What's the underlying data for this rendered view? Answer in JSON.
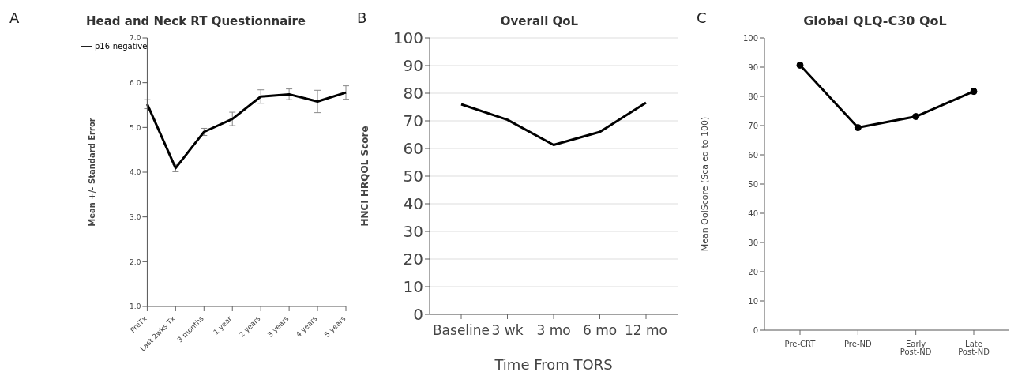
{
  "chart_data": [
    {
      "type": "line",
      "annotations": [
        "A"
      ],
      "title": "Head and Neck RT Questionnaire",
      "ylabel": "Mean +/- Standard Error",
      "categories": [
        "PreTx",
        "Last 2wks Tx",
        "3 months",
        "1 year",
        "2 years",
        "3 years",
        "4 years",
        "5 years"
      ],
      "series": [
        {
          "name": "p16-negative",
          "color": "#000000",
          "values": [
            5.52,
            4.09,
            4.9,
            5.19,
            5.69,
            5.74,
            5.58,
            5.78
          ],
          "errors": [
            0.1,
            0.08,
            0.08,
            0.15,
            0.15,
            0.12,
            0.25,
            0.15
          ]
        }
      ],
      "ylim": [
        1,
        7
      ],
      "yticks": [
        {
          "value": 1,
          "label": "1.0"
        },
        {
          "value": 2,
          "label": "2.0"
        },
        {
          "value": 3,
          "label": "3.0"
        },
        {
          "value": 4,
          "label": "4.0"
        },
        {
          "value": 5,
          "label": "5.0"
        },
        {
          "value": 6,
          "label": "6.0"
        },
        {
          "value": 7,
          "label": "7.0"
        }
      ],
      "legend": "top left",
      "marker": "none",
      "grid": false
    },
    {
      "type": "line",
      "annotations": [
        "B"
      ],
      "title": "Overall QoL",
      "xlabel": "Time From TORS",
      "ylabel": "HNCI HRQOL Score",
      "categories": [
        "Baseline",
        "3 wk",
        "3 mo",
        "6 mo",
        "12 mo"
      ],
      "color": "#000000",
      "values": [
        76,
        70.4,
        61.3,
        66,
        76.6
      ],
      "ylim": [
        0,
        100
      ],
      "yticks": [
        0,
        10,
        20,
        30,
        40,
        50,
        60,
        70,
        80,
        90,
        100
      ],
      "grid": "y",
      "marker": "none"
    },
    {
      "type": "line",
      "annotations": [
        "C"
      ],
      "title": "Global QLQ-C30 QoL",
      "ylabel": "Mean QolScore (Scaled to 100)",
      "categories": [
        "Pre-CRT",
        "Pre-ND",
        "Early Post-ND",
        "Late Post-ND"
      ],
      "color": "#000000",
      "values": [
        90.7,
        69.3,
        73.1,
        81.7
      ],
      "ylim": [
        0,
        100
      ],
      "yticks": [
        0,
        10,
        20,
        30,
        40,
        50,
        60,
        70,
        80,
        90,
        100
      ],
      "grid": false,
      "marker": "circle"
    }
  ]
}
